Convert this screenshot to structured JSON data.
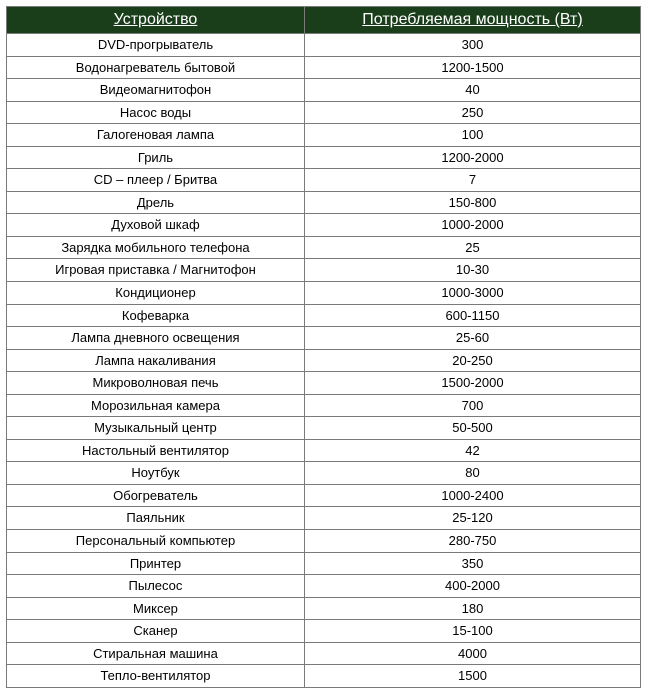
{
  "table": {
    "header_bg": "#1a3d1a",
    "header_fg": "#ffffff",
    "border_color": "#7a7a7a",
    "row_bg": "#ffffff",
    "cell_fg": "#000000",
    "header_fontsize": 16,
    "cell_fontsize": 13,
    "columns": [
      {
        "label": "Устройство",
        "width": "47%"
      },
      {
        "label": "Потребляемая мощность (Вт)",
        "width": "53%"
      }
    ],
    "rows": [
      [
        "DVD-прогрыватель",
        "300"
      ],
      [
        "Водонагреватель бытовой",
        "1200-1500"
      ],
      [
        "Видеомагнитофон",
        "40"
      ],
      [
        "Насос воды",
        "250"
      ],
      [
        "Галогеновая лампа",
        "100"
      ],
      [
        "Гриль",
        "1200-2000"
      ],
      [
        "CD – плеер / Бритва",
        "7"
      ],
      [
        "Дрель",
        "150-800"
      ],
      [
        "Духовой шкаф",
        "1000-2000"
      ],
      [
        "Зарядка мобильного телефона",
        "25"
      ],
      [
        "Игровая приставка / Магнитофон",
        "10-30"
      ],
      [
        "Кондиционер",
        "1000-3000"
      ],
      [
        "Кофеварка",
        "600-1150"
      ],
      [
        "Лампа дневного освещения",
        "25-60"
      ],
      [
        "Лампа накаливания",
        "20-250"
      ],
      [
        "Микроволновая печь",
        "1500-2000"
      ],
      [
        "Морозильная камера",
        "700"
      ],
      [
        "Музыкальный центр",
        "50-500"
      ],
      [
        "Настольный вентилятор",
        "42"
      ],
      [
        "Ноутбук",
        "80"
      ],
      [
        "Обогреватель",
        "1000-2400"
      ],
      [
        "Паяльник",
        "25-120"
      ],
      [
        "Персональный компьютер",
        "280-750"
      ],
      [
        "Принтер",
        "350"
      ],
      [
        "Пылесос",
        "400-2000"
      ],
      [
        "Миксер",
        "180"
      ],
      [
        "Сканер",
        "15-100"
      ],
      [
        "Стиральная машина",
        "4000"
      ],
      [
        "Тепло-вентилятор",
        "1500"
      ]
    ]
  }
}
